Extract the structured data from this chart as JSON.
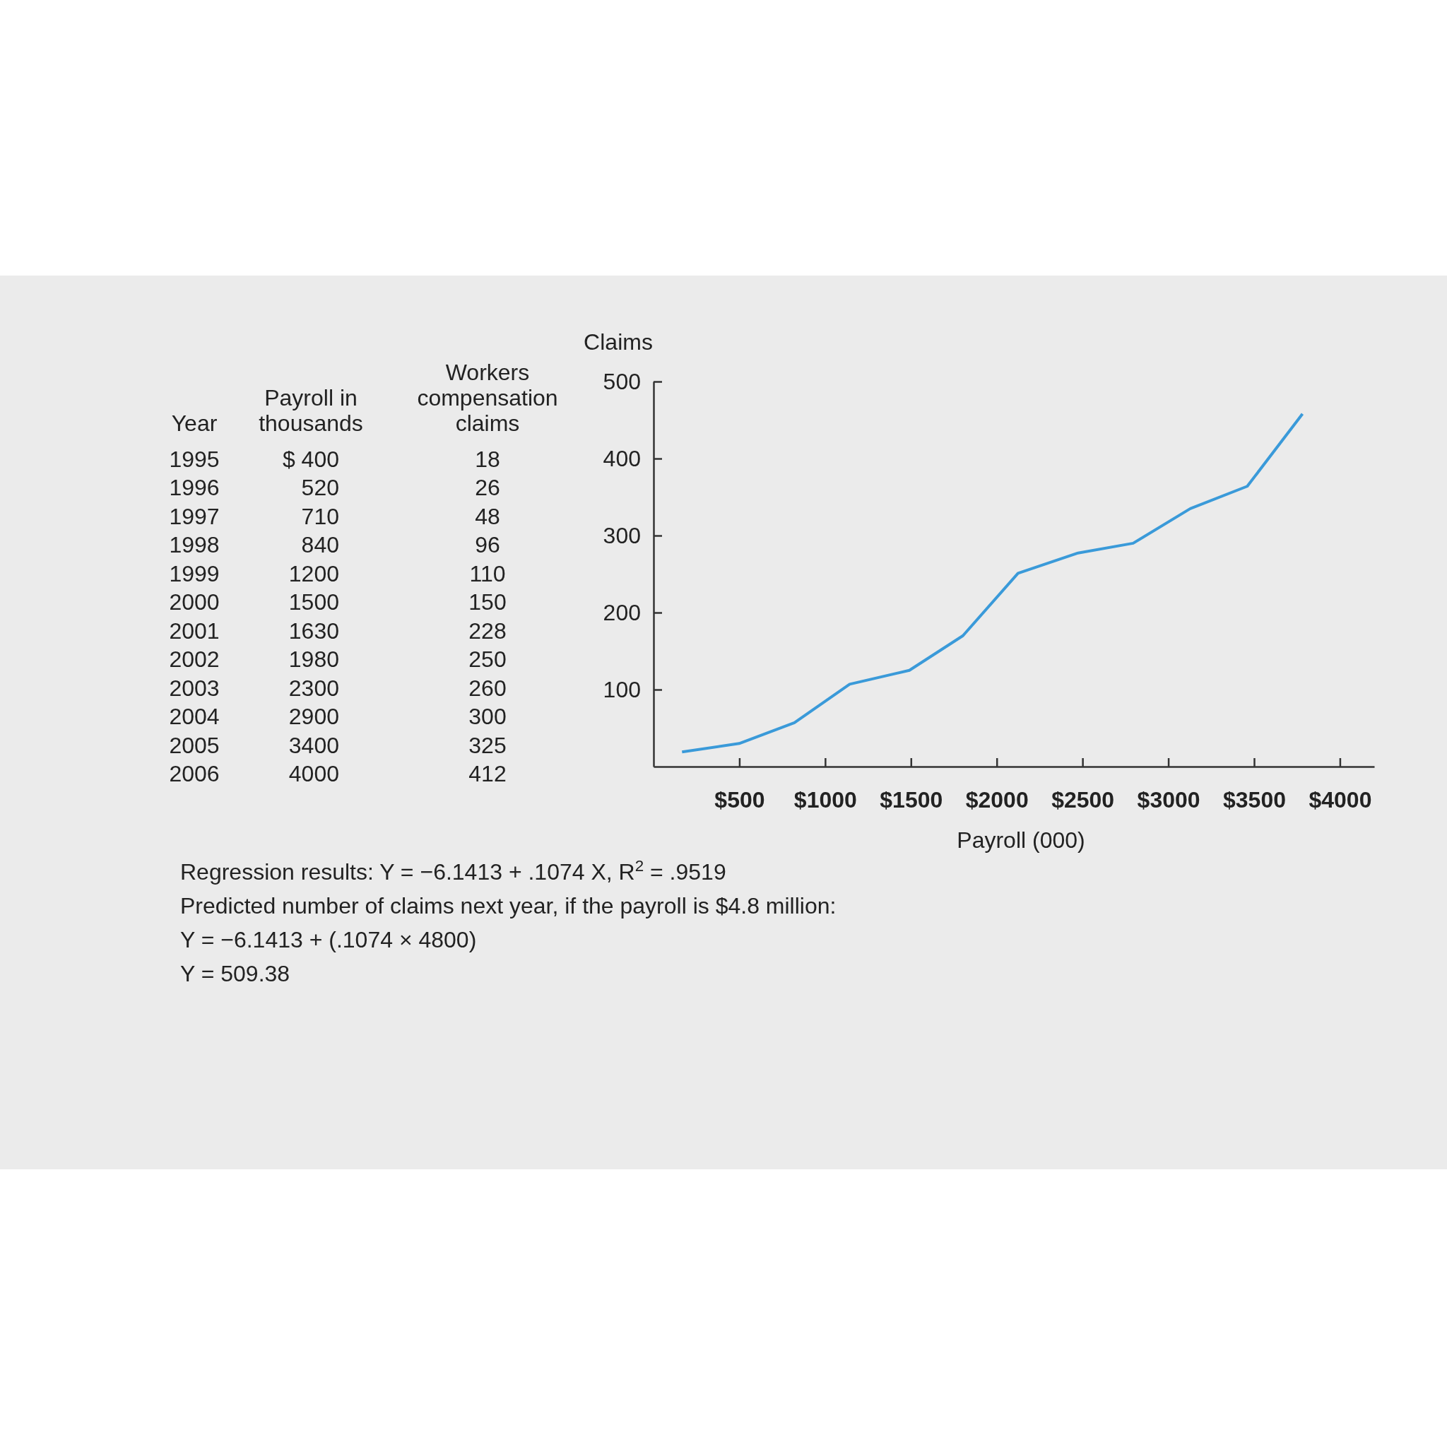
{
  "chart_data": {
    "type": "line",
    "ylabel": "Claims",
    "xlabel": "Payroll (000)",
    "xlim": [
      0,
      4200
    ],
    "ylim": [
      0,
      500
    ],
    "xticks": [
      {
        "value": 500,
        "label": "$500"
      },
      {
        "value": 1000,
        "label": "$1000"
      },
      {
        "value": 1500,
        "label": "$1500"
      },
      {
        "value": 2000,
        "label": "$2000"
      },
      {
        "value": 2500,
        "label": "$2500"
      },
      {
        "value": 3000,
        "label": "$3000"
      },
      {
        "value": 3500,
        "label": "$3500"
      },
      {
        "value": 4000,
        "label": "$4000"
      }
    ],
    "yticks": [
      100,
      200,
      300,
      400,
      500
    ],
    "grid": false,
    "marker": "none",
    "line_style": "solid",
    "series": [
      {
        "color": "#3a9ad9",
        "x": [
          166,
          499,
          821,
          1143,
          1491,
          1803,
          2124,
          2468,
          2795,
          3128,
          3460,
          3782
        ],
        "values": [
          19,
          30,
          57,
          107,
          125,
          170,
          251,
          277,
          290,
          335,
          364,
          458
        ]
      }
    ],
    "annotations": [
      "Year\tPayroll in thousands\tWorkers compensation claims",
      "1995\t$ 400\t18",
      "1996\t520\t26",
      "1997\t710\t48",
      "1998\t840\t96",
      "1999\t1200\t110",
      "2000\t1500\t150",
      "2001\t1630\t228",
      "2002\t1980\t250",
      "2003\t2300\t260",
      "2004\t2900\t300",
      "2005\t3400\t325",
      "2006\t4000\t412",
      "Regression results: Y = −6.1413 + .1074 X,  R$^{2}$ = .9519",
      "Predicted number of claims next year, if the payroll is $4.8 million:",
      "Y = −6.1413 + (.1074 × 4800)",
      "Y = 509.38"
    ]
  }
}
